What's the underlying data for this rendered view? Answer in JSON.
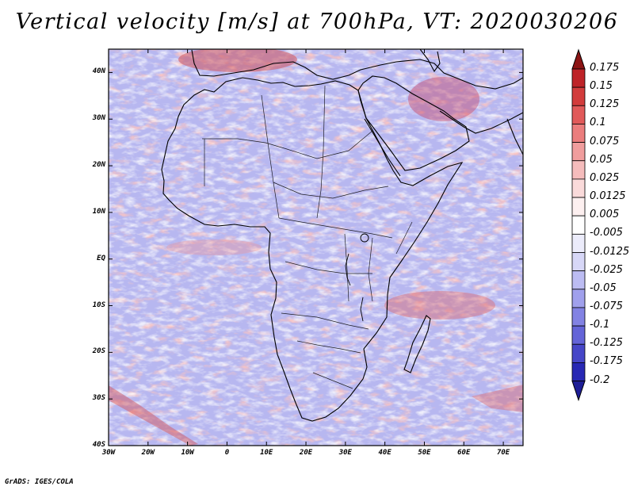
{
  "title": "Vertical velocity [m/s] at 700hPa, VT: 2020030206",
  "credit": "GrADS: IGES/COLA",
  "map": {
    "lon_range": [
      -30,
      75
    ],
    "lat_range": [
      -40,
      45
    ],
    "lat_ticks": [
      {
        "value": 40,
        "label": "40N"
      },
      {
        "value": 30,
        "label": "30N"
      },
      {
        "value": 20,
        "label": "20N"
      },
      {
        "value": 10,
        "label": "10N"
      },
      {
        "value": 0,
        "label": "EQ"
      },
      {
        "value": -10,
        "label": "10S"
      },
      {
        "value": -20,
        "label": "20S"
      },
      {
        "value": -30,
        "label": "30S"
      },
      {
        "value": -40,
        "label": "40S"
      }
    ],
    "lon_ticks": [
      {
        "value": -30,
        "label": "30W"
      },
      {
        "value": -20,
        "label": "20W"
      },
      {
        "value": -10,
        "label": "10W"
      },
      {
        "value": 0,
        "label": "0"
      },
      {
        "value": 10,
        "label": "10E"
      },
      {
        "value": 20,
        "label": "20E"
      },
      {
        "value": 30,
        "label": "30E"
      },
      {
        "value": 40,
        "label": "40E"
      },
      {
        "value": 50,
        "label": "50E"
      },
      {
        "value": 60,
        "label": "60E"
      },
      {
        "value": 70,
        "label": "70E"
      }
    ]
  },
  "colorbar": {
    "levels": [
      {
        "label": "0.175",
        "color": "#a0141e"
      },
      {
        "label": "0.15",
        "color": "#be2328"
      },
      {
        "label": "0.125",
        "color": "#d23c3c"
      },
      {
        "label": "0.1",
        "color": "#e15a5a"
      },
      {
        "label": "0.075",
        "color": "#eb7d7d"
      },
      {
        "label": "0.05",
        "color": "#f09d9d"
      },
      {
        "label": "0.025",
        "color": "#f5bcbc"
      },
      {
        "label": "0.0125",
        "color": "#fadada"
      },
      {
        "label": "0.005",
        "color": "#fdf0f0"
      },
      {
        "label": "-0.005",
        "color": "#ffffff"
      },
      {
        "label": "-0.0125",
        "color": "#ececfb"
      },
      {
        "label": "-0.025",
        "color": "#d7d7f7"
      },
      {
        "label": "-0.05",
        "color": "#bcbcf2"
      },
      {
        "label": "-0.075",
        "color": "#a0a0ec"
      },
      {
        "label": "-0.1",
        "color": "#8282e3"
      },
      {
        "label": "-0.125",
        "color": "#6464d8"
      },
      {
        "label": "-0.175",
        "color": "#4646c8"
      },
      {
        "label": "-0.2",
        "color": "#2828b4"
      }
    ],
    "top_color": "#8c1414",
    "bottom_color": "#1e1e96"
  }
}
